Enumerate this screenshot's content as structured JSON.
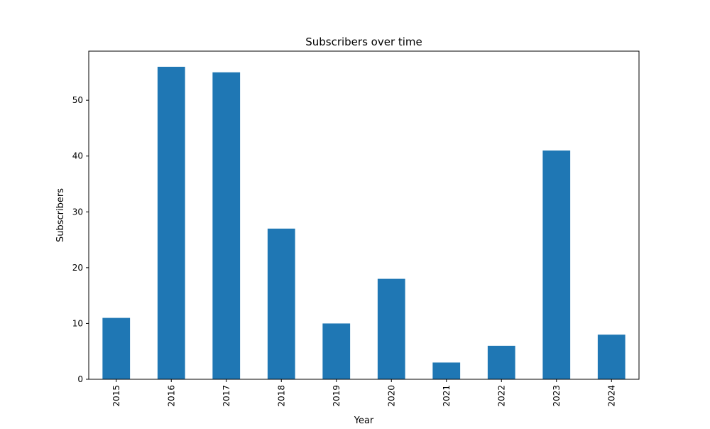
{
  "chart_data": {
    "type": "bar",
    "title": "Subscribers over time",
    "xlabel": "Year",
    "ylabel": "Subscribers",
    "categories": [
      "2015",
      "2016",
      "2017",
      "2018",
      "2019",
      "2020",
      "2021",
      "2022",
      "2023",
      "2024"
    ],
    "values": [
      11,
      56,
      55,
      27,
      10,
      18,
      3,
      6,
      41,
      8
    ],
    "ylim": [
      0,
      58.8
    ],
    "yticks": [
      0,
      10,
      20,
      30,
      40,
      50
    ],
    "grid": false,
    "legend": "none",
    "bar_color": "#1f77b4"
  }
}
